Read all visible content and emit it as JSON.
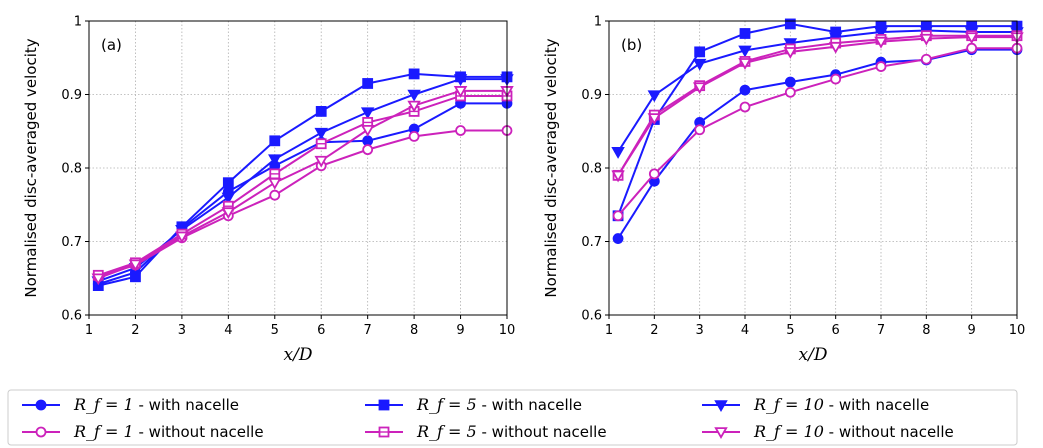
{
  "chart_data": [
    {
      "type": "line",
      "panel_label": "(a)",
      "xlabel": "x/D",
      "ylabel": "Normalised disc-averaged velocity",
      "xlim": [
        1,
        10
      ],
      "ylim": [
        0.6,
        1.0
      ],
      "xticks": [
        "1",
        "2",
        "3",
        "4",
        "5",
        "6",
        "7",
        "8",
        "9",
        "10"
      ],
      "yticks": [
        "0.6",
        "0.7",
        "0.8",
        "0.9",
        "1"
      ],
      "grid": true,
      "x": [
        1.2,
        2,
        3,
        4,
        5,
        6,
        7,
        8,
        9,
        10
      ],
      "series": [
        {
          "name": "R_f = 1 - with nacelle",
          "color": "#1a1aff",
          "marker": "circle-filled",
          "values": [
            0.642,
            0.658,
            0.718,
            0.768,
            0.803,
            0.835,
            0.837,
            0.853,
            0.888,
            0.888
          ]
        },
        {
          "name": "R_f = 5 - with nacelle",
          "color": "#1a1aff",
          "marker": "square-filled",
          "values": [
            0.64,
            0.652,
            0.72,
            0.78,
            0.837,
            0.877,
            0.915,
            0.928,
            0.924,
            0.924
          ]
        },
        {
          "name": "R_f = 10 - with nacelle",
          "color": "#1a1aff",
          "marker": "triangle-down-filled",
          "values": [
            0.646,
            0.664,
            0.716,
            0.76,
            0.812,
            0.848,
            0.876,
            0.9,
            0.921,
            0.921
          ]
        },
        {
          "name": "R_f = 1 - without nacelle",
          "color": "#cc22bb",
          "marker": "circle-open",
          "values": [
            0.652,
            0.668,
            0.705,
            0.735,
            0.763,
            0.803,
            0.825,
            0.843,
            0.851,
            0.851
          ]
        },
        {
          "name": "R_f = 5 - without nacelle",
          "color": "#cc22bb",
          "marker": "square-open",
          "values": [
            0.654,
            0.671,
            0.71,
            0.748,
            0.792,
            0.833,
            0.862,
            0.877,
            0.898,
            0.898
          ]
        },
        {
          "name": "R_f = 10 - without nacelle",
          "color": "#cc22bb",
          "marker": "triangle-down-open",
          "values": [
            0.65,
            0.669,
            0.707,
            0.74,
            0.78,
            0.81,
            0.852,
            0.885,
            0.905,
            0.905
          ]
        }
      ]
    },
    {
      "type": "line",
      "panel_label": "(b)",
      "xlabel": "x/D",
      "ylabel": "Normalised disc-averaged velocity",
      "xlim": [
        1,
        10
      ],
      "ylim": [
        0.6,
        1.0
      ],
      "xticks": [
        "1",
        "2",
        "3",
        "4",
        "5",
        "6",
        "7",
        "8",
        "9",
        "10"
      ],
      "yticks": [
        "0.6",
        "0.7",
        "0.8",
        "0.9",
        "1"
      ],
      "grid": true,
      "x": [
        1.2,
        2,
        3,
        4,
        5,
        6,
        7,
        8,
        9,
        10
      ],
      "series": [
        {
          "name": "R_f = 1 - with nacelle",
          "color": "#1a1aff",
          "marker": "circle-filled",
          "values": [
            0.704,
            0.782,
            0.862,
            0.906,
            0.917,
            0.927,
            0.944,
            0.947,
            0.961,
            0.961
          ]
        },
        {
          "name": "R_f = 5 - with nacelle",
          "color": "#1a1aff",
          "marker": "square-filled",
          "values": [
            0.735,
            0.866,
            0.958,
            0.983,
            0.996,
            0.985,
            0.993,
            0.993,
            0.993,
            0.993
          ]
        },
        {
          "name": "R_f = 10 - with nacelle",
          "color": "#1a1aff",
          "marker": "triangle-down-filled",
          "values": [
            0.822,
            0.899,
            0.942,
            0.96,
            0.97,
            0.978,
            0.985,
            0.987,
            0.985,
            0.985
          ]
        },
        {
          "name": "R_f = 1 - without nacelle",
          "color": "#cc22bb",
          "marker": "circle-open",
          "values": [
            0.735,
            0.792,
            0.852,
            0.883,
            0.903,
            0.921,
            0.938,
            0.948,
            0.963,
            0.963
          ]
        },
        {
          "name": "R_f = 5 - without nacelle",
          "color": "#cc22bb",
          "marker": "square-open",
          "values": [
            0.79,
            0.872,
            0.912,
            0.945,
            0.962,
            0.97,
            0.975,
            0.98,
            0.98,
            0.98
          ]
        },
        {
          "name": "R_f = 10 - without nacelle",
          "color": "#cc22bb",
          "marker": "triangle-down-open",
          "values": [
            0.79,
            0.868,
            0.91,
            0.943,
            0.958,
            0.965,
            0.972,
            0.976,
            0.978,
            0.978
          ]
        }
      ]
    }
  ],
  "legend": {
    "placement": "bottom",
    "entries": [
      {
        "math": "R_f = 1",
        "text": " - with nacelle",
        "series_index": 0
      },
      {
        "math": "R_f = 5",
        "text": " - with nacelle",
        "series_index": 1
      },
      {
        "math": "R_f = 10",
        "text": " - with nacelle",
        "series_index": 2
      },
      {
        "math": "R_f = 1",
        "text": " - without nacelle",
        "series_index": 3
      },
      {
        "math": "R_f = 5",
        "text": " - without nacelle",
        "series_index": 4
      },
      {
        "math": "R_f = 10",
        "text": " - without nacelle",
        "series_index": 5
      }
    ]
  }
}
